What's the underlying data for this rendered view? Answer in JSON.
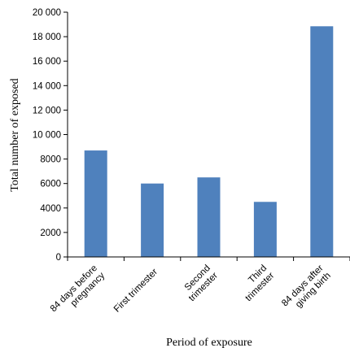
{
  "chart_data": {
    "type": "bar",
    "title": "",
    "xlabel": "Period of exposure",
    "ylabel": "Total number of exposed",
    "ylim": [
      0,
      20000
    ],
    "yticks": [
      0,
      2000,
      4000,
      6000,
      8000,
      10000,
      12000,
      14000,
      16000,
      18000,
      20000
    ],
    "ytick_labels": [
      "0",
      "2000",
      "4000",
      "6000",
      "8000",
      "10 000",
      "12 000",
      "14 000",
      "16 000",
      "18 000",
      "20 000"
    ],
    "categories": [
      [
        "84 days before",
        "pregnancy"
      ],
      [
        "First trimester"
      ],
      [
        "Second",
        "trimester"
      ],
      [
        "Third",
        "trimester"
      ],
      [
        "84 days after",
        "giving birth"
      ]
    ],
    "values": [
      8700,
      6000,
      6500,
      4500,
      18850
    ],
    "bar_color": "#4f81bd",
    "grid": false,
    "legend": "none"
  }
}
